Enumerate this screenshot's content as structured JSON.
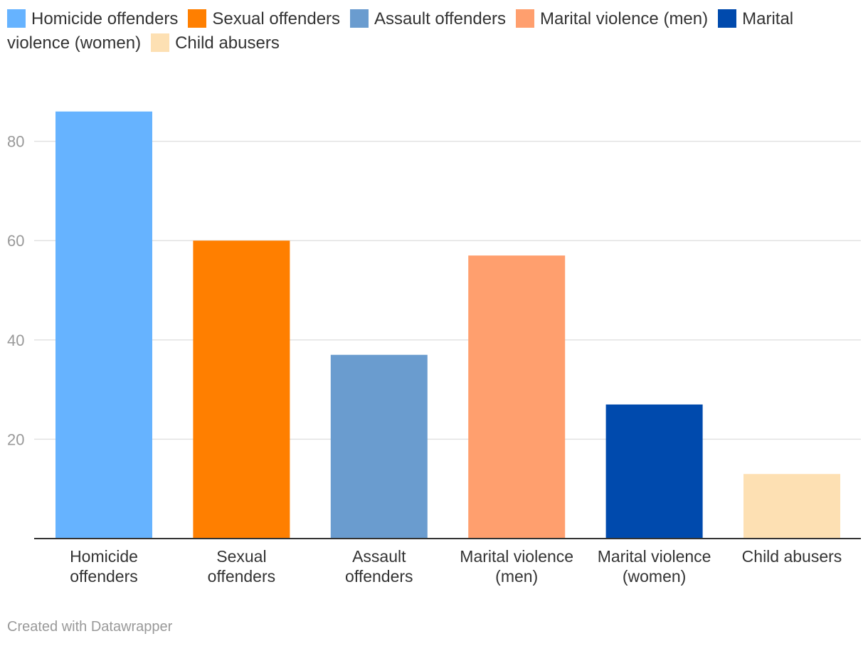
{
  "chart_data": {
    "type": "bar",
    "categories": [
      [
        "Homicide",
        "offenders"
      ],
      [
        "Sexual",
        "offenders"
      ],
      [
        "Assault",
        "offenders"
      ],
      [
        "Marital violence",
        "(men)"
      ],
      [
        "Marital violence",
        "(women)"
      ],
      [
        "Child abusers"
      ]
    ],
    "values": [
      86,
      60,
      37,
      57,
      27,
      13
    ],
    "colors": [
      "#66b3ff",
      "#ff7f00",
      "#6a9ccf",
      "#ff9f6e",
      "#004aad",
      "#fde0b3"
    ],
    "legend": [
      {
        "label": "Homicide offenders",
        "color": "#66b3ff"
      },
      {
        "label": "Sexual offenders",
        "color": "#ff7f00"
      },
      {
        "label": "Assault offenders",
        "color": "#6a9ccf"
      },
      {
        "label": "Marital violence (men)",
        "color": "#ff9f6e"
      },
      {
        "label": "Marital violence (women)",
        "color": "#004aad"
      },
      {
        "label": "Child abusers",
        "color": "#fde0b3"
      }
    ],
    "yticks": [
      20,
      40,
      60,
      80
    ],
    "ylim": [
      0,
      88
    ],
    "grid": true,
    "legend_position": "top",
    "title": "",
    "xlabel": "",
    "ylabel": ""
  },
  "footer": {
    "credit": "Created with Datawrapper"
  }
}
